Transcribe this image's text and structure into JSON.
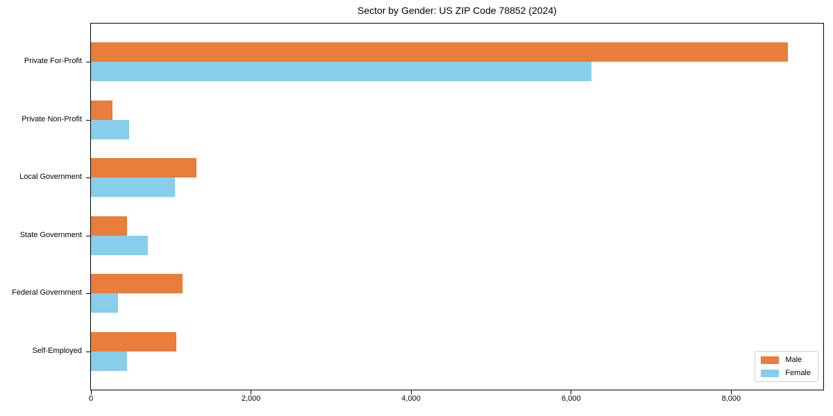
{
  "chart_data": {
    "type": "bar",
    "orientation": "horizontal",
    "title": "Sector by Gender: US ZIP Code 78852 (2024)",
    "categories": [
      "Private For-Profit",
      "Private Non-Profit",
      "Local Government",
      "State Government",
      "Federal Government",
      "Self-Employed"
    ],
    "series": [
      {
        "name": "Male",
        "color": "#e87d3c",
        "values": [
          8710,
          265,
          1315,
          450,
          1145,
          1070
        ]
      },
      {
        "name": "Female",
        "color": "#87ceeb",
        "values": [
          6250,
          480,
          1050,
          715,
          340,
          450
        ]
      }
    ],
    "xlabel": "",
    "ylabel": "",
    "xlim": [
      0,
      9150
    ],
    "x_ticks": [
      0,
      2000,
      4000,
      6000,
      8000
    ],
    "x_tick_labels": [
      "0",
      "2,000",
      "4,000",
      "6,000",
      "8,000"
    ],
    "grid": false,
    "legend": {
      "position": "lower right",
      "entries": [
        "Male",
        "Female"
      ]
    },
    "colors": {
      "axis": "#000000",
      "text": "#000000",
      "legend_border": "#cccccc",
      "background": "#ffffff"
    }
  }
}
